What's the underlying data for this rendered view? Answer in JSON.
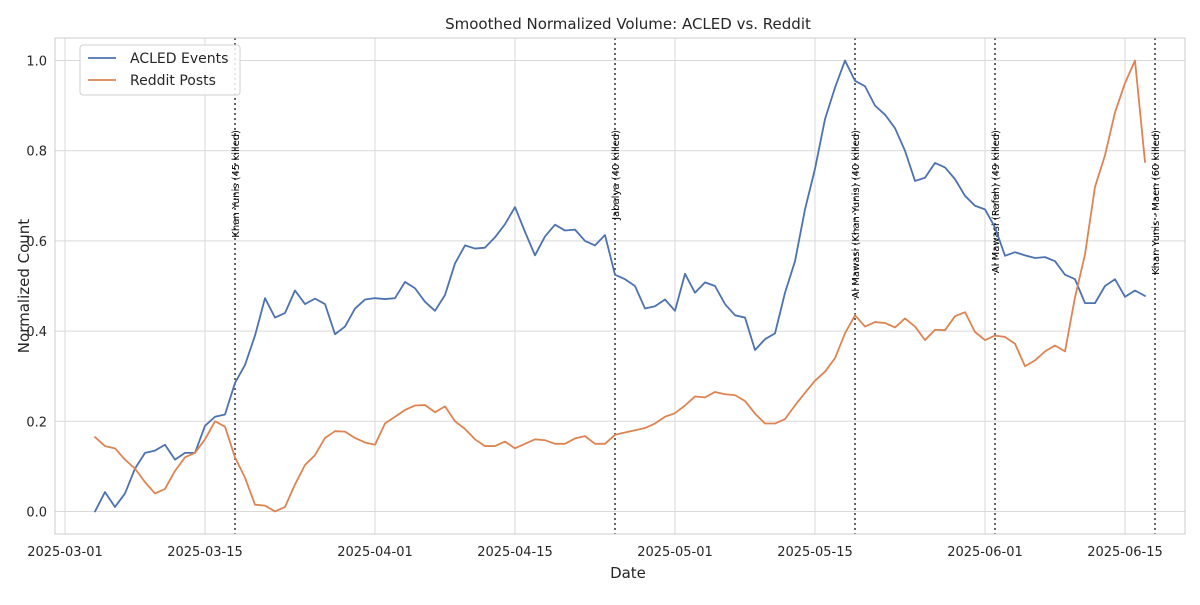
{
  "chart_data": {
    "type": "line",
    "title": "Smoothed Normalized Volume: ACLED vs. Reddit",
    "xlabel": "Date",
    "ylabel": "Normalized Count",
    "xlim": [
      "2025-02-28",
      "2025-06-21"
    ],
    "ylim": [
      -0.05,
      1.05
    ],
    "x_ticks": [
      "2025-03-01",
      "2025-03-15",
      "2025-04-01",
      "2025-04-15",
      "2025-05-01",
      "2025-05-15",
      "2025-06-01",
      "2025-06-15"
    ],
    "y_ticks": [
      "0.0",
      "0.2",
      "0.4",
      "0.6",
      "0.8",
      "1.0"
    ],
    "grid": true,
    "legend": "top-left",
    "x_start": "2025-03-04",
    "series": [
      {
        "name": "ACLED Events",
        "color": "#4c72b0",
        "values": [
          0.0,
          0.043,
          0.01,
          0.04,
          0.095,
          0.13,
          0.135,
          0.148,
          0.115,
          0.13,
          0.13,
          0.19,
          0.21,
          0.215,
          0.285,
          0.325,
          0.39,
          0.473,
          0.43,
          0.44,
          0.49,
          0.46,
          0.472,
          0.46,
          0.393,
          0.41,
          0.45,
          0.47,
          0.473,
          0.471,
          0.473,
          0.509,
          0.495,
          0.465,
          0.445,
          0.48,
          0.55,
          0.59,
          0.583,
          0.585,
          0.608,
          0.637,
          0.675,
          0.62,
          0.568,
          0.61,
          0.636,
          0.623,
          0.625,
          0.6,
          0.59,
          0.613,
          0.525,
          0.515,
          0.5,
          0.45,
          0.455,
          0.47,
          0.445,
          0.527,
          0.485,
          0.508,
          0.5,
          0.46,
          0.435,
          0.43,
          0.358,
          0.382,
          0.395,
          0.485,
          0.555,
          0.67,
          0.76,
          0.87,
          0.94,
          1.0,
          0.955,
          0.943,
          0.9,
          0.88,
          0.85,
          0.8,
          0.733,
          0.74,
          0.773,
          0.763,
          0.737,
          0.7,
          0.678,
          0.67,
          0.63,
          0.567,
          0.575,
          0.568,
          0.562,
          0.564,
          0.555,
          0.525,
          0.515,
          0.462,
          0.462,
          0.5,
          0.515,
          0.476,
          0.49,
          0.478
        ]
      },
      {
        "name": "Reddit Posts",
        "color": "#dd8452",
        "values": [
          0.165,
          0.145,
          0.14,
          0.115,
          0.095,
          0.065,
          0.04,
          0.05,
          0.09,
          0.12,
          0.13,
          0.16,
          0.2,
          0.188,
          0.12,
          0.075,
          0.015,
          0.013,
          0.0,
          0.01,
          0.06,
          0.103,
          0.125,
          0.163,
          0.178,
          0.177,
          0.163,
          0.153,
          0.148,
          0.195,
          0.21,
          0.225,
          0.235,
          0.236,
          0.22,
          0.233,
          0.2,
          0.183,
          0.16,
          0.145,
          0.145,
          0.155,
          0.14,
          0.15,
          0.16,
          0.158,
          0.15,
          0.15,
          0.162,
          0.167,
          0.15,
          0.15,
          0.17,
          0.175,
          0.18,
          0.185,
          0.195,
          0.21,
          0.218,
          0.235,
          0.255,
          0.253,
          0.265,
          0.26,
          0.258,
          0.245,
          0.217,
          0.195,
          0.195,
          0.205,
          0.235,
          0.263,
          0.29,
          0.31,
          0.34,
          0.395,
          0.435,
          0.41,
          0.42,
          0.418,
          0.408,
          0.428,
          0.41,
          0.38,
          0.403,
          0.402,
          0.433,
          0.442,
          0.398,
          0.38,
          0.39,
          0.387,
          0.372,
          0.322,
          0.335,
          0.355,
          0.368,
          0.355,
          0.475,
          0.57,
          0.72,
          0.79,
          0.885,
          0.95,
          1.0,
          0.775
        ]
      }
    ],
    "events": [
      {
        "date": "2025-03-18",
        "label": "Khan Yunis (45 killed)"
      },
      {
        "date": "2025-04-25",
        "label": "Jabalya (40 killed)"
      },
      {
        "date": "2025-05-19",
        "label": "Al Mawasi (Khan Yunis) (40 killed)"
      },
      {
        "date": "2025-06-02",
        "label": "Al Mawasi (Rafah) (49 killed)"
      },
      {
        "date": "2025-06-18",
        "label": "Khan Yunis - Maen (60 killed)"
      }
    ]
  }
}
